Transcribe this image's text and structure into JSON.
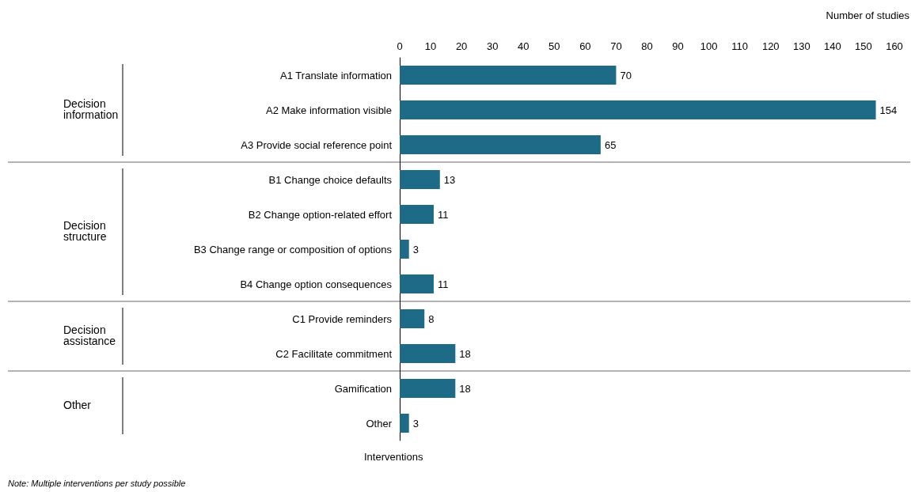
{
  "chart_data": {
    "type": "bar",
    "orientation": "horizontal",
    "xlabel": "Number of studies",
    "ylabel": "Interventions",
    "categories": [
      "A1 Translate information",
      "A2 Make information visible",
      "A3 Provide social reference point",
      "B1 Change choice defaults",
      "B2 Change option-related effort",
      "B3 Change range or composition of options",
      "B4 Change option consequences",
      "C1 Provide reminders",
      "C2 Facilitate commitment",
      "Gamification",
      "Other"
    ],
    "values": [
      70,
      154,
      65,
      13,
      11,
      3,
      11,
      8,
      18,
      18,
      3
    ],
    "color": "#1e6b88",
    "data_labels": true,
    "grid": false,
    "xlim": [
      0,
      160
    ],
    "xticks": [
      0,
      10,
      20,
      30,
      40,
      50,
      60,
      70,
      80,
      90,
      100,
      110,
      120,
      130,
      140,
      150,
      160
    ],
    "annotations": [
      "Decision information",
      "Decision structure",
      "Decision assistance",
      "Other",
      "Note: Multiple interventions per study possible"
    ]
  }
}
